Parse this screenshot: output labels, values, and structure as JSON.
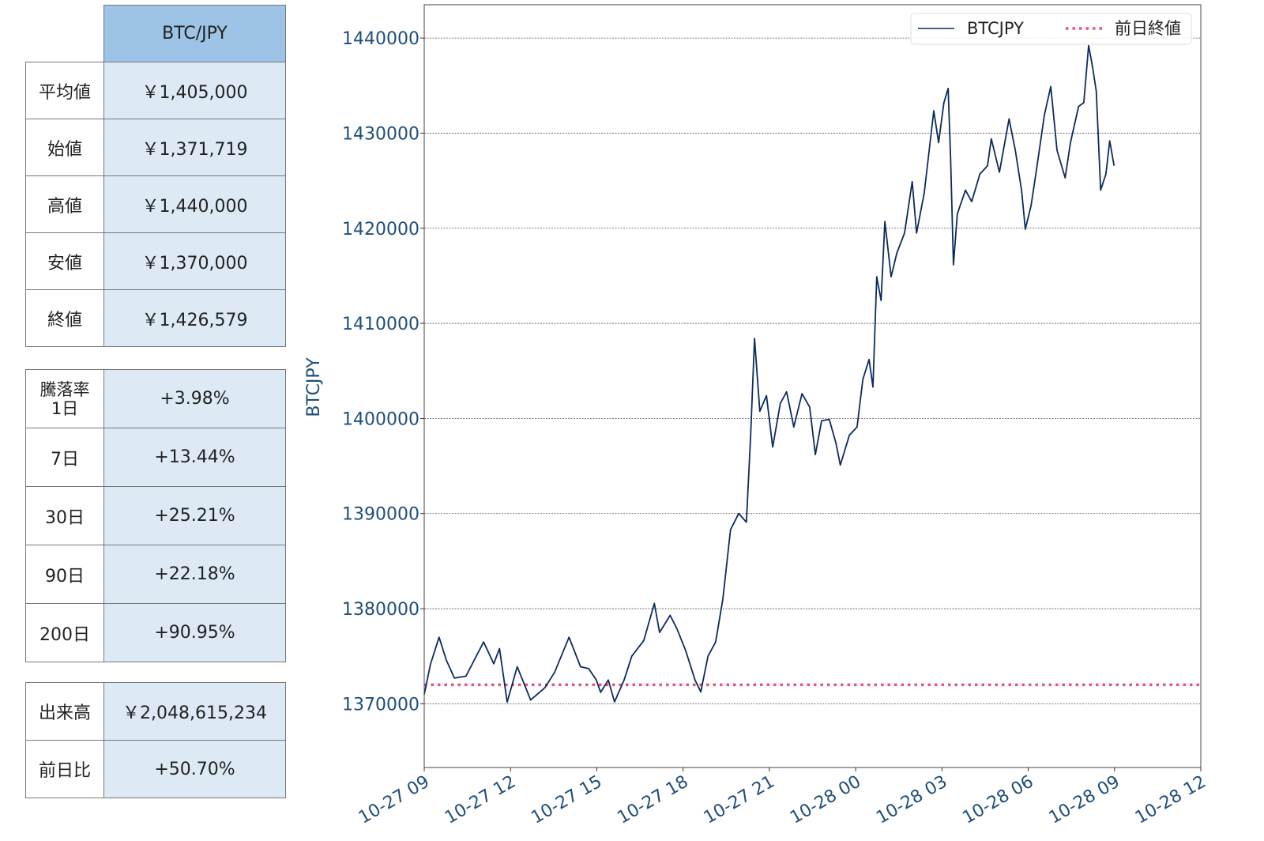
{
  "summary_table": {
    "header": "BTC/JPY",
    "rows": [
      {
        "label": "平均値",
        "value": "￥1,405,000"
      },
      {
        "label": "始値",
        "value": "￥1,371,719"
      },
      {
        "label": "高値",
        "value": "￥1,440,000"
      },
      {
        "label": "安値",
        "value": "￥1,370,000"
      },
      {
        "label": "終値",
        "value": "￥1,426,579"
      }
    ]
  },
  "change_table": {
    "rows": [
      {
        "label": "騰落率\n1日",
        "value": "+3.98%"
      },
      {
        "label": "7日",
        "value": "+13.44%"
      },
      {
        "label": "30日",
        "value": "+25.21%"
      },
      {
        "label": "90日",
        "value": "+22.18%"
      },
      {
        "label": "200日",
        "value": "+90.95%"
      }
    ]
  },
  "volume_table": {
    "rows": [
      {
        "label": "出来高",
        "value": "￥2,048,615,234"
      },
      {
        "label": "前日比",
        "value": "+50.70%"
      }
    ]
  },
  "chart_data": {
    "type": "line",
    "ylabel": "BTCJPY",
    "xlabel": "",
    "ylim": [
      1363300,
      1443500
    ],
    "xlim": [
      "10-27 09:00",
      "10-28 12:00"
    ],
    "yticks": [
      "1370000",
      "1380000",
      "1390000",
      "1400000",
      "1410000",
      "1420000",
      "1430000",
      "1440000"
    ],
    "xticks": [
      "10-27 09",
      "10-27 12",
      "10-27 15",
      "10-27 18",
      "10-27 21",
      "10-28 00",
      "10-28 03",
      "10-28 06",
      "10-28 09",
      "10-28 12"
    ],
    "grid": "horizontal dotted",
    "legend_position": "top-right",
    "series": [
      {
        "name": "BTCJPY",
        "color": "#0d2b5e",
        "style": "solid",
        "points": [
          [
            "10-27 09:00",
            1371000
          ],
          [
            "10-27 09:13",
            1374150
          ],
          [
            "10-27 09:31",
            1377000
          ],
          [
            "10-27 09:46",
            1374600
          ],
          [
            "10-27 10:03",
            1372700
          ],
          [
            "10-27 10:27",
            1372900
          ],
          [
            "10-27 11:04",
            1376500
          ],
          [
            "10-27 11:25",
            1374200
          ],
          [
            "10-27 11:37",
            1375800
          ],
          [
            "10-27 11:53",
            1370170
          ],
          [
            "10-27 12:14",
            1373900
          ],
          [
            "10-27 12:42",
            1370400
          ],
          [
            "10-27 13:12",
            1371700
          ],
          [
            "10-27 13:32",
            1373300
          ],
          [
            "10-27 14:02",
            1377000
          ],
          [
            "10-27 14:26",
            1373900
          ],
          [
            "10-27 14:43",
            1373700
          ],
          [
            "10-27 14:59",
            1372500
          ],
          [
            "10-27 15:08",
            1371200
          ],
          [
            "10-27 15:24",
            1372500
          ],
          [
            "10-27 15:37",
            1370200
          ],
          [
            "10-27 15:57",
            1372500
          ],
          [
            "10-27 16:13",
            1375000
          ],
          [
            "10-27 16:38",
            1376650
          ],
          [
            "10-27 17:00",
            1380550
          ],
          [
            "10-27 17:11",
            1377500
          ],
          [
            "10-27 17:33",
            1379300
          ],
          [
            "10-27 17:47",
            1377900
          ],
          [
            "10-27 18:05",
            1375650
          ],
          [
            "10-27 18:25",
            1372500
          ],
          [
            "10-27 18:37",
            1371250
          ],
          [
            "10-27 18:52",
            1375000
          ],
          [
            "10-27 19:08",
            1376500
          ],
          [
            "10-27 19:23",
            1381000
          ],
          [
            "10-27 19:39",
            1388300
          ],
          [
            "10-27 19:56",
            1390000
          ],
          [
            "10-27 20:12",
            1389100
          ],
          [
            "10-27 20:21",
            1398250
          ],
          [
            "10-27 20:29",
            1408400
          ],
          [
            "10-27 20:40",
            1400750
          ],
          [
            "10-27 20:54",
            1402400
          ],
          [
            "10-27 21:07",
            1397000
          ],
          [
            "10-27 21:23",
            1401600
          ],
          [
            "10-27 21:36",
            1402800
          ],
          [
            "10-27 21:51",
            1399100
          ],
          [
            "10-27 22:08",
            1402600
          ],
          [
            "10-27 22:24",
            1401200
          ],
          [
            "10-27 22:36",
            1396200
          ],
          [
            "10-27 22:49",
            1399750
          ],
          [
            "10-27 23:05",
            1399900
          ],
          [
            "10-27 23:19",
            1397400
          ],
          [
            "10-27 23:28",
            1395100
          ],
          [
            "10-27 23:47",
            1398250
          ],
          [
            "10-28 00:03",
            1399100
          ],
          [
            "10-28 00:15",
            1404100
          ],
          [
            "10-28 00:28",
            1406200
          ],
          [
            "10-28 00:36",
            1403300
          ],
          [
            "10-28 00:44",
            1414900
          ],
          [
            "10-28 00:53",
            1412400
          ],
          [
            "10-28 01:01",
            1420700
          ],
          [
            "10-28 01:14",
            1414900
          ],
          [
            "10-28 01:26",
            1417400
          ],
          [
            "10-28 01:42",
            1419500
          ],
          [
            "10-28 01:58",
            1424900
          ],
          [
            "10-28 02:07",
            1419500
          ],
          [
            "10-28 02:23",
            1423700
          ],
          [
            "10-28 02:43",
            1432350
          ],
          [
            "10-28 02:53",
            1429000
          ],
          [
            "10-28 03:04",
            1433200
          ],
          [
            "10-28 03:13",
            1434700
          ],
          [
            "10-28 03:18",
            1427350
          ],
          [
            "10-28 03:24",
            1416150
          ],
          [
            "10-28 03:32",
            1421500
          ],
          [
            "10-28 03:49",
            1424000
          ],
          [
            "10-28 04:02",
            1422800
          ],
          [
            "10-28 04:19",
            1425700
          ],
          [
            "10-28 04:35",
            1426550
          ],
          [
            "10-28 04:43",
            1429400
          ],
          [
            "10-28 05:00",
            1425900
          ],
          [
            "10-28 05:20",
            1431500
          ],
          [
            "10-28 05:33",
            1428200
          ],
          [
            "10-28 05:46",
            1424000
          ],
          [
            "10-28 05:54",
            1419900
          ],
          [
            "10-28 06:06",
            1422400
          ],
          [
            "10-28 06:17",
            1426100
          ],
          [
            "10-28 06:34",
            1432000
          ],
          [
            "10-28 06:47",
            1434900
          ],
          [
            "10-28 07:00",
            1428200
          ],
          [
            "10-28 07:17",
            1425300
          ],
          [
            "10-28 07:28",
            1429000
          ],
          [
            "10-28 07:45",
            1432800
          ],
          [
            "10-28 07:56",
            1433200
          ],
          [
            "10-28 08:06",
            1439200
          ],
          [
            "10-28 08:14",
            1437000
          ],
          [
            "10-28 08:22",
            1434400
          ],
          [
            "10-28 08:31",
            1424000
          ],
          [
            "10-28 08:42",
            1425700
          ],
          [
            "10-28 08:50",
            1429200
          ],
          [
            "10-28 08:59",
            1426579
          ]
        ]
      },
      {
        "name": "前日終値",
        "color": "#e0577a",
        "style": "dotted",
        "value": 1372000
      }
    ]
  }
}
